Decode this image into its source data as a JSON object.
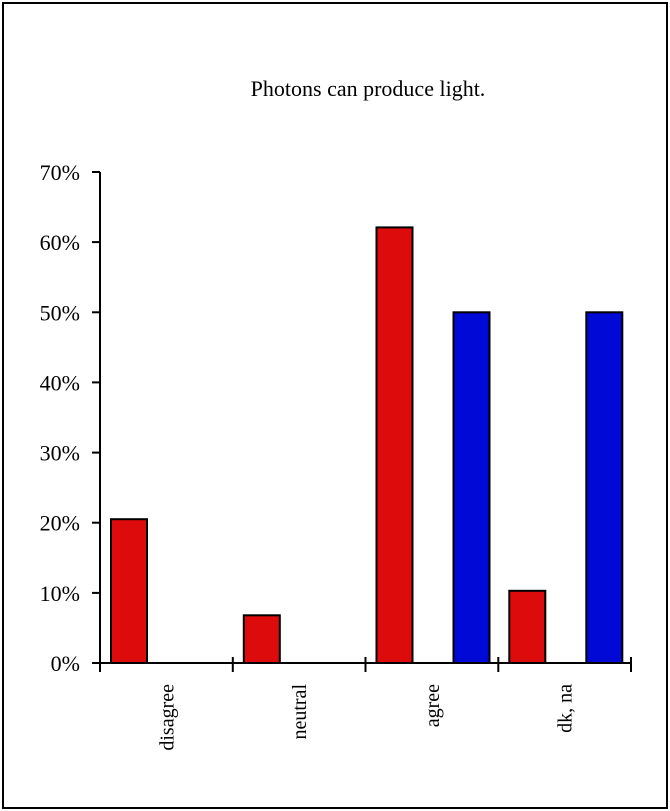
{
  "chart_data": {
    "type": "bar",
    "title": "Photons can produce light.",
    "xlabel": "",
    "ylabel": "",
    "categories": [
      "disagree",
      "neutral",
      "agree",
      "dk, na"
    ],
    "series": [
      {
        "color": "#dd0b0b",
        "values": [
          20.5,
          6.8,
          62.1,
          10.3
        ]
      },
      {
        "color": "#0009d6",
        "values": [
          0,
          0,
          50,
          50
        ]
      }
    ],
    "ylim": [
      0,
      70
    ],
    "yticks": [
      0,
      10,
      20,
      30,
      40,
      50,
      60,
      70
    ],
    "ytick_labels": [
      "0%",
      "10%",
      "20%",
      "30%",
      "40%",
      "50%",
      "60%",
      "70%"
    ],
    "grid": false,
    "legend": "none"
  }
}
